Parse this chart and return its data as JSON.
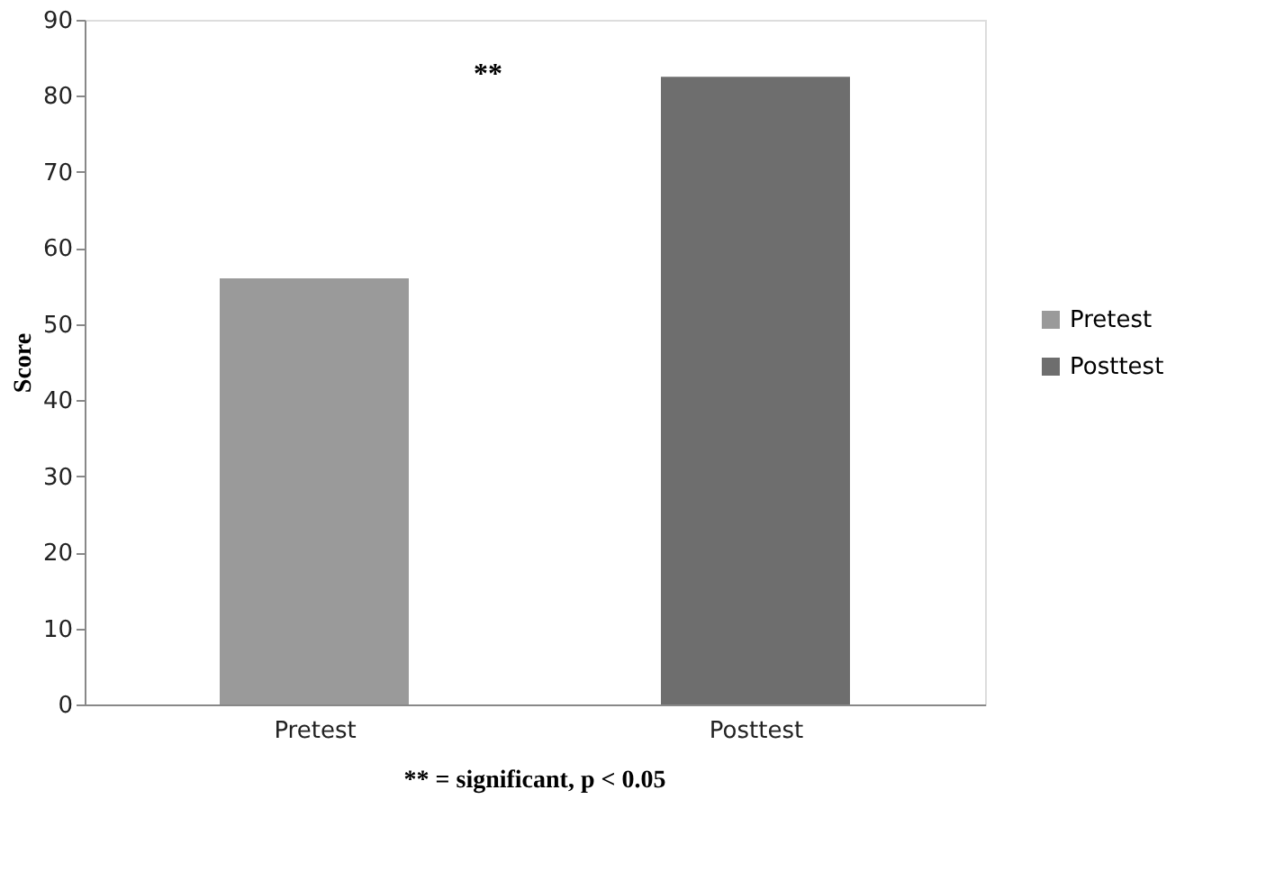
{
  "chart_data": {
    "type": "bar",
    "categories": [
      "Pretest",
      "Posttest"
    ],
    "ylabel": "Score",
    "ylim": [
      0,
      90
    ],
    "yticks": [
      0,
      10,
      20,
      30,
      40,
      50,
      60,
      70,
      80,
      90
    ],
    "series": [
      {
        "name": "Pretest",
        "color": "#9a9a9a",
        "values": [
          56,
          null
        ]
      },
      {
        "name": "Posttest",
        "color": "#6e6e6e",
        "values": [
          null,
          82.5
        ]
      }
    ],
    "legend": "right",
    "grid": false,
    "annotations": [
      "**",
      "** = significant, p < 0.05"
    ]
  }
}
